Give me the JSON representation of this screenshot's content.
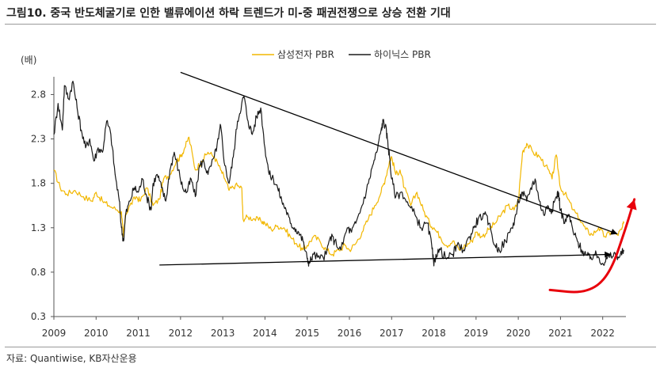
{
  "figure": {
    "title": "그림10. 중국 반도체굴기로 인한 밸류에이션 하락 트렌드가 미-중 패권전쟁으로 상승 전환 기대",
    "source": "자료: Quantiwise, KB자산운용"
  },
  "chart_data": {
    "type": "line",
    "title": "",
    "xlabel": "",
    "ylabel": "(배)",
    "ylim": [
      0.3,
      3.0
    ],
    "xlim": [
      2009,
      2022.55
    ],
    "yticks": [
      0.3,
      0.8,
      1.3,
      1.8,
      2.3,
      2.8
    ],
    "xticks": [
      2009,
      2010,
      2011,
      2012,
      2013,
      2014,
      2015,
      2016,
      2017,
      2018,
      2019,
      2020,
      2021,
      2022
    ],
    "grid": false,
    "legend": "top-center",
    "series": [
      {
        "name": "삼성전자 PBR",
        "color": "#F2B700",
        "points": [
          [
            2009.0,
            1.95
          ],
          [
            2009.15,
            1.75
          ],
          [
            2009.3,
            1.68
          ],
          [
            2009.5,
            1.72
          ],
          [
            2009.7,
            1.65
          ],
          [
            2009.9,
            1.6
          ],
          [
            2010.0,
            1.7
          ],
          [
            2010.15,
            1.6
          ],
          [
            2010.3,
            1.55
          ],
          [
            2010.5,
            1.5
          ],
          [
            2010.6,
            1.48
          ],
          [
            2010.65,
            1.2
          ],
          [
            2010.7,
            1.45
          ],
          [
            2010.8,
            1.55
          ],
          [
            2010.95,
            1.65
          ],
          [
            2011.05,
            1.6
          ],
          [
            2011.2,
            1.75
          ],
          [
            2011.35,
            1.55
          ],
          [
            2011.5,
            1.62
          ],
          [
            2011.6,
            1.85
          ],
          [
            2011.75,
            1.9
          ],
          [
            2011.9,
            2.05
          ],
          [
            2012.0,
            2.1
          ],
          [
            2012.1,
            2.2
          ],
          [
            2012.2,
            2.32
          ],
          [
            2012.35,
            1.95
          ],
          [
            2012.5,
            2.05
          ],
          [
            2012.65,
            2.15
          ],
          [
            2012.8,
            2.1
          ],
          [
            2012.95,
            1.95
          ],
          [
            2013.05,
            1.85
          ],
          [
            2013.15,
            1.72
          ],
          [
            2013.3,
            1.78
          ],
          [
            2013.45,
            1.75
          ],
          [
            2013.48,
            1.4
          ],
          [
            2013.6,
            1.42
          ],
          [
            2013.75,
            1.4
          ],
          [
            2013.9,
            1.38
          ],
          [
            2014.0,
            1.35
          ],
          [
            2014.15,
            1.28
          ],
          [
            2014.3,
            1.32
          ],
          [
            2014.45,
            1.3
          ],
          [
            2014.6,
            1.2
          ],
          [
            2014.75,
            1.12
          ],
          [
            2014.9,
            1.05
          ],
          [
            2015.0,
            1.1
          ],
          [
            2015.15,
            1.2
          ],
          [
            2015.3,
            1.15
          ],
          [
            2015.45,
            1.05
          ],
          [
            2015.6,
            1.0
          ],
          [
            2015.75,
            1.05
          ],
          [
            2015.9,
            1.1
          ],
          [
            2016.0,
            1.05
          ],
          [
            2016.15,
            1.12
          ],
          [
            2016.3,
            1.25
          ],
          [
            2016.45,
            1.4
          ],
          [
            2016.6,
            1.55
          ],
          [
            2016.75,
            1.7
          ],
          [
            2016.85,
            1.85
          ],
          [
            2016.95,
            2.05
          ],
          [
            2017.0,
            2.1
          ],
          [
            2017.1,
            1.9
          ],
          [
            2017.2,
            1.95
          ],
          [
            2017.3,
            1.75
          ],
          [
            2017.45,
            1.55
          ],
          [
            2017.6,
            1.7
          ],
          [
            2017.75,
            1.5
          ],
          [
            2017.9,
            1.35
          ],
          [
            2018.0,
            1.3
          ],
          [
            2018.15,
            1.2
          ],
          [
            2018.3,
            1.1
          ],
          [
            2018.45,
            1.15
          ],
          [
            2018.6,
            1.05
          ],
          [
            2018.75,
            1.1
          ],
          [
            2018.9,
            1.15
          ],
          [
            2019.0,
            1.25
          ],
          [
            2019.15,
            1.2
          ],
          [
            2019.3,
            1.28
          ],
          [
            2019.45,
            1.35
          ],
          [
            2019.6,
            1.45
          ],
          [
            2019.75,
            1.55
          ],
          [
            2019.9,
            1.5
          ],
          [
            2020.0,
            1.6
          ],
          [
            2020.1,
            2.15
          ],
          [
            2020.2,
            2.25
          ],
          [
            2020.35,
            2.15
          ],
          [
            2020.5,
            2.1
          ],
          [
            2020.65,
            2.0
          ],
          [
            2020.8,
            1.85
          ],
          [
            2020.9,
            2.12
          ],
          [
            2021.0,
            1.75
          ],
          [
            2021.15,
            1.65
          ],
          [
            2021.3,
            1.5
          ],
          [
            2021.45,
            1.4
          ],
          [
            2021.6,
            1.28
          ],
          [
            2021.75,
            1.22
          ],
          [
            2021.9,
            1.3
          ],
          [
            2022.05,
            1.2
          ],
          [
            2022.2,
            1.25
          ],
          [
            2022.35,
            1.22
          ],
          [
            2022.45,
            1.28
          ],
          [
            2022.5,
            1.35
          ]
        ]
      },
      {
        "name": "하이닉스 PBR",
        "color": "#1a1a1a",
        "points": [
          [
            2009.0,
            2.35
          ],
          [
            2009.1,
            2.7
          ],
          [
            2009.2,
            2.4
          ],
          [
            2009.25,
            2.9
          ],
          [
            2009.35,
            2.75
          ],
          [
            2009.45,
            2.95
          ],
          [
            2009.55,
            2.65
          ],
          [
            2009.65,
            2.4
          ],
          [
            2009.75,
            2.2
          ],
          [
            2009.85,
            2.3
          ],
          [
            2009.95,
            2.05
          ],
          [
            2010.05,
            2.2
          ],
          [
            2010.15,
            2.15
          ],
          [
            2010.25,
            2.5
          ],
          [
            2010.35,
            2.35
          ],
          [
            2010.45,
            1.9
          ],
          [
            2010.55,
            1.6
          ],
          [
            2010.6,
            1.3
          ],
          [
            2010.65,
            1.15
          ],
          [
            2010.7,
            1.45
          ],
          [
            2010.8,
            1.6
          ],
          [
            2010.9,
            1.75
          ],
          [
            2011.0,
            1.7
          ],
          [
            2011.1,
            1.85
          ],
          [
            2011.2,
            1.65
          ],
          [
            2011.3,
            1.5
          ],
          [
            2011.35,
            1.8
          ],
          [
            2011.45,
            1.9
          ],
          [
            2011.55,
            1.75
          ],
          [
            2011.65,
            1.6
          ],
          [
            2011.75,
            1.95
          ],
          [
            2011.85,
            2.15
          ],
          [
            2011.95,
            1.95
          ],
          [
            2012.05,
            1.75
          ],
          [
            2012.15,
            1.7
          ],
          [
            2012.25,
            1.85
          ],
          [
            2012.35,
            1.65
          ],
          [
            2012.45,
            2.0
          ],
          [
            2012.55,
            2.05
          ],
          [
            2012.65,
            1.9
          ],
          [
            2012.8,
            2.1
          ],
          [
            2012.9,
            2.3
          ],
          [
            2012.95,
            2.45
          ],
          [
            2013.05,
            2.0
          ],
          [
            2013.15,
            1.8
          ],
          [
            2013.25,
            2.1
          ],
          [
            2013.35,
            2.5
          ],
          [
            2013.45,
            2.7
          ],
          [
            2013.5,
            2.78
          ],
          [
            2013.6,
            2.5
          ],
          [
            2013.7,
            2.35
          ],
          [
            2013.8,
            2.55
          ],
          [
            2013.9,
            2.65
          ],
          [
            2014.0,
            2.2
          ],
          [
            2014.1,
            1.9
          ],
          [
            2014.2,
            1.85
          ],
          [
            2014.3,
            1.75
          ],
          [
            2014.4,
            1.6
          ],
          [
            2014.5,
            1.5
          ],
          [
            2014.6,
            1.35
          ],
          [
            2014.7,
            1.3
          ],
          [
            2014.8,
            1.25
          ],
          [
            2014.9,
            1.15
          ],
          [
            2015.0,
            0.95
          ],
          [
            2015.05,
            0.9
          ],
          [
            2015.15,
            1.0
          ],
          [
            2015.3,
            0.95
          ],
          [
            2015.45,
            1.0
          ],
          [
            2015.55,
            1.2
          ],
          [
            2015.65,
            1.15
          ],
          [
            2015.8,
            1.05
          ],
          [
            2015.95,
            1.3
          ],
          [
            2016.05,
            1.25
          ],
          [
            2016.15,
            1.35
          ],
          [
            2016.3,
            1.55
          ],
          [
            2016.45,
            1.8
          ],
          [
            2016.55,
            2.0
          ],
          [
            2016.65,
            2.15
          ],
          [
            2016.75,
            2.4
          ],
          [
            2016.8,
            2.5
          ],
          [
            2016.85,
            2.45
          ],
          [
            2016.9,
            2.3
          ],
          [
            2016.95,
            2.1
          ],
          [
            2017.0,
            1.85
          ],
          [
            2017.1,
            1.65
          ],
          [
            2017.25,
            1.7
          ],
          [
            2017.4,
            1.55
          ],
          [
            2017.55,
            1.45
          ],
          [
            2017.7,
            1.3
          ],
          [
            2017.85,
            1.35
          ],
          [
            2017.95,
            1.1
          ],
          [
            2018.0,
            0.87
          ],
          [
            2018.05,
            1.0
          ],
          [
            2018.15,
            1.05
          ],
          [
            2018.3,
            0.95
          ],
          [
            2018.45,
            1.0
          ],
          [
            2018.55,
            1.1
          ],
          [
            2018.7,
            1.05
          ],
          [
            2018.85,
            1.2
          ],
          [
            2018.95,
            1.3
          ],
          [
            2019.05,
            1.4
          ],
          [
            2019.2,
            1.45
          ],
          [
            2019.3,
            1.35
          ],
          [
            2019.45,
            1.1
          ],
          [
            2019.55,
            1.05
          ],
          [
            2019.7,
            1.15
          ],
          [
            2019.85,
            1.3
          ],
          [
            2019.95,
            1.45
          ],
          [
            2020.0,
            1.6
          ],
          [
            2020.1,
            1.7
          ],
          [
            2020.2,
            1.6
          ],
          [
            2020.3,
            1.75
          ],
          [
            2020.4,
            1.85
          ],
          [
            2020.5,
            1.6
          ],
          [
            2020.6,
            1.45
          ],
          [
            2020.7,
            1.55
          ],
          [
            2020.8,
            1.5
          ],
          [
            2020.9,
            1.65
          ],
          [
            2020.95,
            1.7
          ],
          [
            2021.0,
            1.5
          ],
          [
            2021.1,
            1.35
          ],
          [
            2021.2,
            1.45
          ],
          [
            2021.3,
            1.25
          ],
          [
            2021.4,
            1.15
          ],
          [
            2021.5,
            1.05
          ],
          [
            2021.6,
            1.0
          ],
          [
            2021.7,
            0.95
          ],
          [
            2021.8,
            1.0
          ],
          [
            2021.9,
            0.97
          ],
          [
            2022.0,
            0.9
          ],
          [
            2022.1,
            0.95
          ],
          [
            2022.2,
            0.98
          ],
          [
            2022.3,
            1.0
          ],
          [
            2022.4,
            0.97
          ],
          [
            2022.5,
            1.05
          ]
        ]
      }
    ],
    "trendlines": [
      {
        "from": [
          2012.0,
          3.05
        ],
        "to": [
          2022.35,
          1.23
        ],
        "color": "#000000"
      },
      {
        "from": [
          2011.5,
          0.88
        ],
        "to": [
          2022.2,
          1.0
        ],
        "color": "#000000"
      }
    ],
    "highlight_arrow": {
      "color": "#E8000B",
      "path": [
        [
          2020.75,
          0.6
        ],
        [
          2021.6,
          0.56
        ],
        [
          2022.15,
          0.75
        ],
        [
          2022.55,
          1.3
        ],
        [
          2022.75,
          1.62
        ]
      ]
    }
  }
}
